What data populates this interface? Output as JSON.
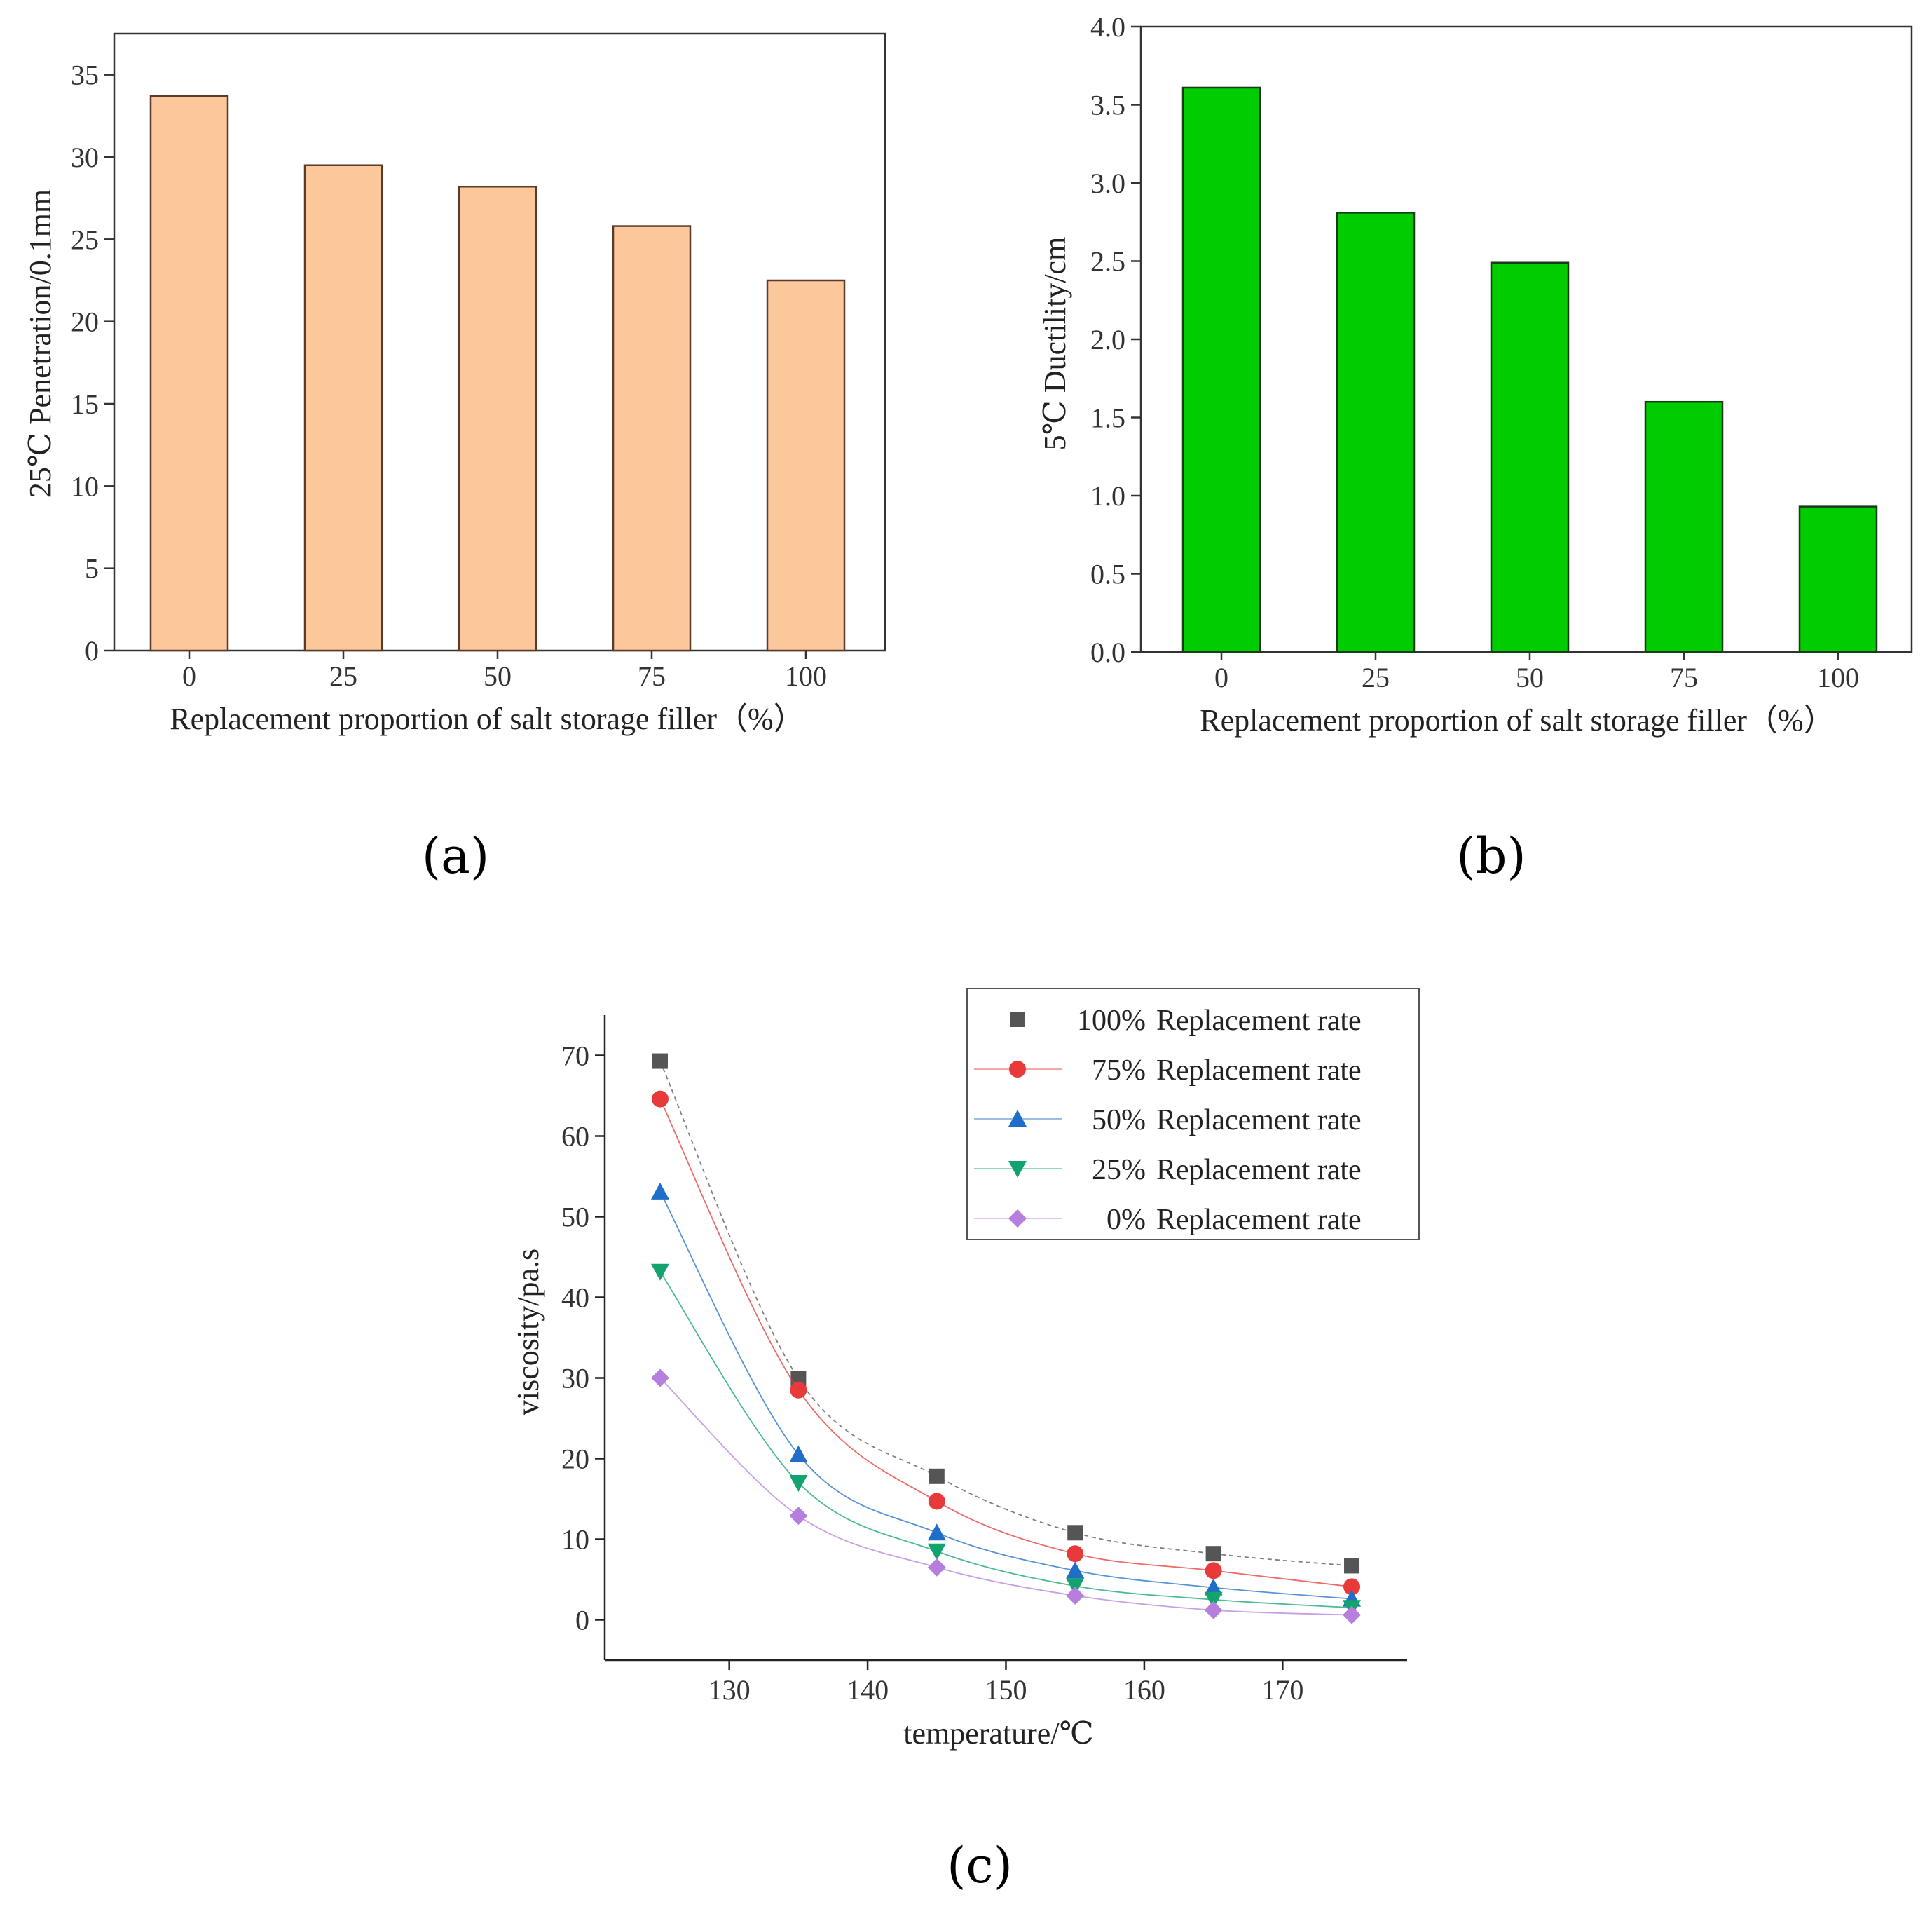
{
  "panel_labels": {
    "a": "(a)",
    "b": "(b)",
    "c": "(c)"
  },
  "chart_data": [
    {
      "type": "bar",
      "panel": "a",
      "title": "",
      "categories": [
        "0",
        "25",
        "50",
        "75",
        "100"
      ],
      "values": [
        33.7,
        29.5,
        28.2,
        25.8,
        22.5
      ],
      "xlabel": "Replacement proportion of salt storage filler（%）",
      "ylabel": "25℃ Penetration/0.1mm",
      "ylim": [
        0,
        37.5
      ],
      "yticks": [
        0,
        5,
        10,
        15,
        20,
        25,
        30,
        35
      ],
      "ytick_labels": [
        "0",
        "5",
        "10",
        "15",
        "20",
        "25",
        "30",
        "35"
      ],
      "colors": {
        "bar": "#FCC79A",
        "edge": "#5a3a2a"
      }
    },
    {
      "type": "bar",
      "panel": "b",
      "title": "",
      "categories": [
        "0",
        "25",
        "50",
        "75",
        "100"
      ],
      "values": [
        3.61,
        2.81,
        2.49,
        1.6,
        0.93
      ],
      "xlabel": "Replacement proportion of salt storage filler（%）",
      "ylabel": "5℃ Ductility/cm",
      "ylim": [
        0,
        4.0
      ],
      "yticks": [
        0,
        0.5,
        1.0,
        1.5,
        2.0,
        2.5,
        3.0,
        3.5,
        4.0
      ],
      "ytick_labels": [
        "0.0",
        "0.5",
        "1.0",
        "1.5",
        "2.0",
        "2.5",
        "3.0",
        "3.5",
        "4.0"
      ],
      "colors": {
        "bar": "#00CC00",
        "edge": "#1a3a1a"
      }
    },
    {
      "type": "line",
      "panel": "c",
      "title": "",
      "x": [
        125,
        135,
        145,
        155,
        165,
        175
      ],
      "xlabel": "temperature/℃",
      "ylabel": "viscosity/pa.s",
      "xlim": [
        121,
        179
      ],
      "ylim": [
        -5,
        75
      ],
      "xticks": [
        130,
        140,
        150,
        160,
        170
      ],
      "xtick_labels": [
        "130",
        "140",
        "150",
        "160",
        "170"
      ],
      "yticks": [
        0,
        10,
        20,
        30,
        40,
        50,
        60,
        70
      ],
      "ytick_labels": [
        "0",
        "10",
        "20",
        "30",
        "40",
        "50",
        "60",
        "70"
      ],
      "legend_position": "top-right",
      "series": [
        {
          "name": "100% Replacement rate",
          "legend_pct": "100%",
          "legend_text": "Replacement rate",
          "marker": "square",
          "color": "#555555",
          "line_dash": "6,5",
          "values": [
            69.3,
            29.9,
            17.8,
            10.8,
            8.2,
            6.7
          ]
        },
        {
          "name": "75%  Replacement rate",
          "legend_pct": "75%",
          "legend_text": "Replacement rate",
          "marker": "circle",
          "color": "#E83A3A",
          "line_dash": "",
          "values": [
            64.6,
            28.5,
            14.7,
            8.2,
            6.1,
            4.1
          ]
        },
        {
          "name": "50%  Replacement rate",
          "legend_pct": "50%",
          "legend_text": "Replacement rate",
          "marker": "triangle-up",
          "color": "#1F6FC8",
          "line_dash": "",
          "values": [
            53.1,
            20.5,
            10.8,
            6.1,
            4.0,
            2.6
          ]
        },
        {
          "name": "25%  Replacement rate",
          "legend_pct": "25%",
          "legend_text": "Replacement rate",
          "marker": "triangle-down",
          "color": "#12A36E",
          "line_dash": "",
          "values": [
            43.2,
            17.0,
            8.5,
            4.2,
            2.5,
            1.5
          ]
        },
        {
          "name": "0%   Replacement rate",
          "legend_pct": "0%",
          "legend_text": "Replacement rate",
          "marker": "diamond",
          "color": "#B77FDD",
          "line_dash": "",
          "values": [
            30.0,
            12.9,
            6.5,
            3.0,
            1.2,
            0.6
          ]
        }
      ]
    }
  ]
}
